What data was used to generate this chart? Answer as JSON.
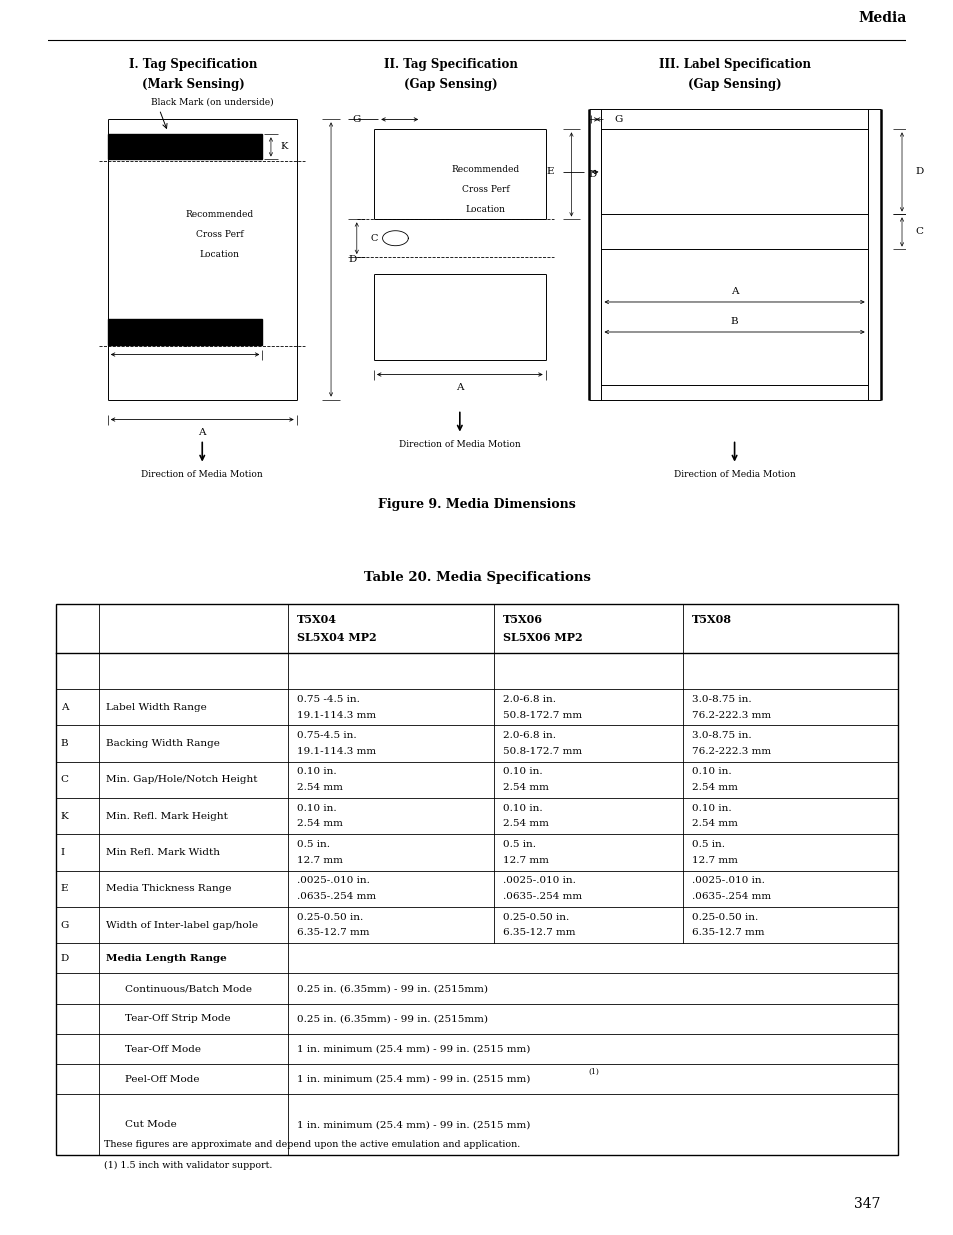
{
  "page_header": "Media",
  "fig_title": "Figure 9. Media Dimensions",
  "table_title": "Table 20. Media Specifications",
  "diagram_titles": [
    [
      "I. Tag Specification",
      "(Mark Sensing)"
    ],
    [
      "II. Tag Specification",
      "(Gap Sensing)"
    ],
    [
      "III. Label Specification",
      "(Gap Sensing)"
    ]
  ],
  "table_col_headers": [
    "T5X04\nSL5X04 MP2",
    "T5X06\nSL5X06 MP2",
    "T5X08"
  ],
  "table_rows": [
    [
      "A",
      "Label Width Range",
      "0.75 -4.5 in.\n19.1-114.3 mm",
      "2.0-6.8 in.\n50.8-172.7 mm",
      "3.0-8.75 in.\n76.2-222.3 mm"
    ],
    [
      "B",
      "Backing Width Range",
      "0.75-4.5 in.\n19.1-114.3 mm",
      "2.0-6.8 in.\n50.8-172.7 mm",
      "3.0-8.75 in.\n76.2-222.3 mm"
    ],
    [
      "C",
      "Min. Gap/Hole/Notch Height",
      "0.10 in.\n2.54 mm",
      "0.10 in.\n2.54 mm",
      "0.10 in.\n2.54 mm"
    ],
    [
      "K",
      "Min. Refl. Mark Height",
      "0.10 in.\n2.54 mm",
      "0.10 in.\n2.54 mm",
      "0.10 in.\n2.54 mm"
    ],
    [
      "I",
      "Min Refl. Mark Width",
      "0.5 in.\n12.7 mm",
      "0.5 in.\n12.7 mm",
      "0.5 in.\n12.7 mm"
    ],
    [
      "E",
      "Media Thickness Range",
      ".0025-.010 in.\n.0635-.254 mm",
      ".0025-.010 in.\n.0635-.254 mm",
      ".0025-.010 in.\n.0635-.254 mm"
    ],
    [
      "G",
      "Width of Inter-label gap/hole",
      "0.25-0.50 in.\n6.35-12.7 mm",
      "0.25-0.50 in.\n6.35-12.7 mm",
      "0.25-0.50 in.\n6.35-12.7 mm"
    ],
    [
      "D",
      "Media Length Range",
      "",
      "",
      ""
    ],
    [
      "",
      "Continuous/Batch Mode",
      "0.25 in. (6.35mm) - 99 in. (2515mm)",
      "",
      ""
    ],
    [
      "",
      "Tear-Off Strip Mode",
      "0.25 in. (6.35mm) - 99 in. (2515mm)",
      "",
      ""
    ],
    [
      "",
      "Tear-Off Mode",
      "1 in. minimum (25.4 mm) - 99 in. (2515 mm)",
      "",
      ""
    ],
    [
      "",
      "Peel-Off Mode",
      "1 in. minimum (25.4 mm) - 99 in. (2515 mm)",
      "",
      ""
    ],
    [
      "",
      "Cut Mode",
      "1 in. minimum (25.4 mm) - 99 in. (2515 mm)",
      "",
      ""
    ]
  ],
  "table_footer": [
    "These figures are approximate and depend upon the active emulation and application.",
    "(1) 1.5 inch with validator support."
  ],
  "page_number": "347",
  "bg_color": "#ffffff"
}
